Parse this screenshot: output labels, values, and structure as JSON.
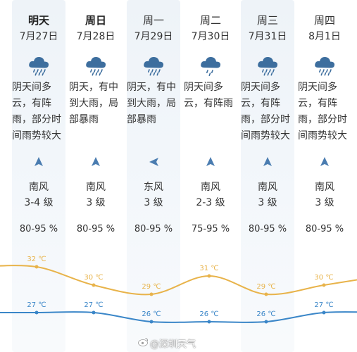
{
  "days": [
    {
      "weekday": "明天",
      "date": "7月27日",
      "icon": "heavy-rain-cloud-icon",
      "desc_lines": [
        "阴天间多",
        "云，有阵",
        "雨，部分时",
        "间雨势较大"
      ],
      "wind_dir_icon": "arrow-up-icon",
      "wind": "南风",
      "level": "3-4 级",
      "humidity": "80-95 %"
    },
    {
      "weekday": "周日",
      "date": "7月28日",
      "icon": "heavy-rain-cloud-icon",
      "desc_lines": [
        "阴天，有中",
        "到大雨，局",
        "部暴雨"
      ],
      "wind_dir_icon": "arrow-up-icon",
      "wind": "南风",
      "level": "3 级",
      "humidity": "80-95 %"
    },
    {
      "weekday": "周一",
      "date": "7月29日",
      "icon": "heavy-rain-cloud-icon",
      "desc_lines": [
        "阴天，有中",
        "到大雨，局",
        "部暴雨"
      ],
      "wind_dir_icon": "arrow-left-icon",
      "wind": "东风",
      "level": "3 级",
      "humidity": "80-95 %"
    },
    {
      "weekday": "周二",
      "date": "7月30日",
      "icon": "rain-cloud-icon",
      "desc_lines": [
        "阴天间多",
        "云，有阵雨"
      ],
      "wind_dir_icon": "arrow-up-icon",
      "wind": "南风",
      "level": "2-3 级",
      "humidity": "75-95 %"
    },
    {
      "weekday": "周三",
      "date": "7月31日",
      "icon": "heavy-rain-cloud-icon",
      "desc_lines": [
        "阴天间多",
        "云，有阵",
        "雨，部分时",
        "间雨势较大"
      ],
      "wind_dir_icon": "arrow-up-icon",
      "wind": "南风",
      "level": "3 级",
      "humidity": "80-95 %"
    },
    {
      "weekday": "周四",
      "date": "8月1日",
      "icon": "heavy-rain-cloud-icon",
      "desc_lines": [
        "阴天间多",
        "云，有阵",
        "雨，部分时",
        "间雨势较大"
      ],
      "wind_dir_icon": "arrow-up-icon",
      "wind": "南风",
      "level": "3 级",
      "humidity": "80-95 %"
    }
  ],
  "temperature": {
    "high_labels": [
      "32 ℃",
      "30 ℃",
      "29 ℃",
      "31 ℃",
      "29 ℃",
      "30 ℃"
    ],
    "low_labels": [
      "27 ℃",
      "27 ℃",
      "26 ℃",
      "26 ℃",
      "26 ℃",
      "27 ℃"
    ],
    "high_values": [
      32,
      30,
      29,
      31,
      29,
      30
    ],
    "low_values": [
      27,
      27,
      26,
      26,
      26,
      27
    ],
    "high_color": "#e8b34a",
    "low_color": "#3a86c8"
  },
  "colors": {
    "icon": "#3d6e9e",
    "arrow": "#4a7cb0"
  },
  "watermark": {
    "text": "@深圳天气"
  }
}
